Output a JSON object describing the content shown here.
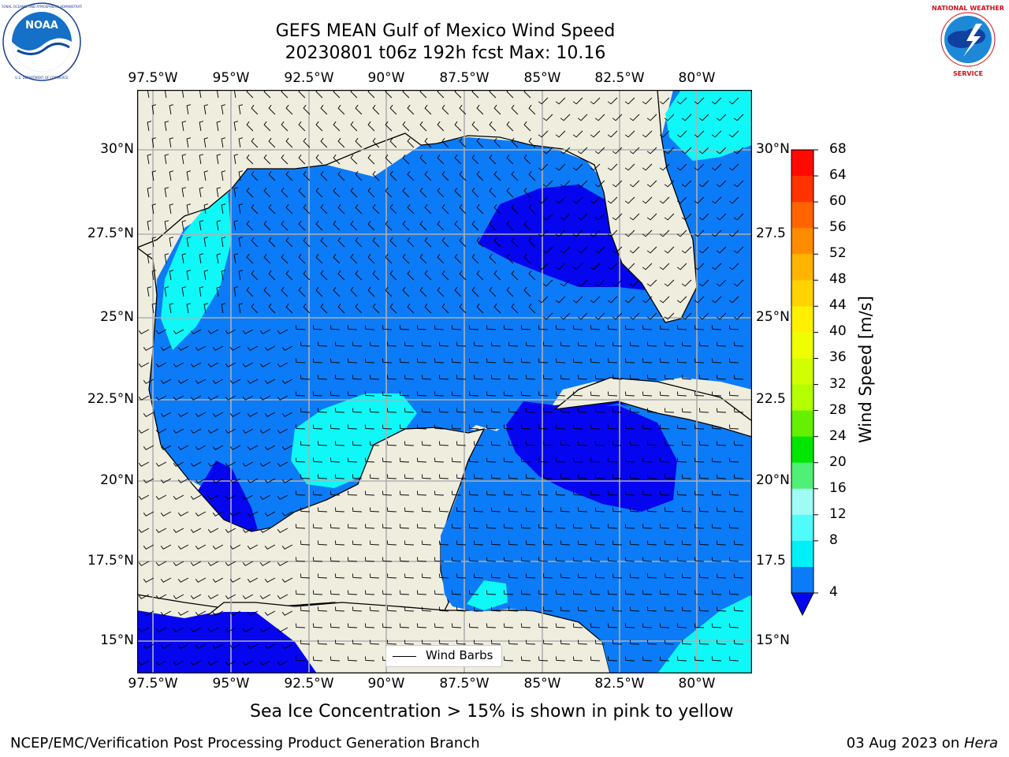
{
  "header": {
    "title_line1": "GEFS MEAN Gulf of Mexico Wind Speed",
    "title_line2": "20230801 t06z 192h fcst   Max: 10.16"
  },
  "logos": {
    "noaa_text": "NOAA",
    "noaa_ring_text": "NATIONAL OCEANIC AND ATMOSPHERIC ADMINISTRATION · U.S. DEPARTMENT OF COMMERCE",
    "nws_ring_text": "NATIONAL WEATHER SERVICE"
  },
  "map": {
    "lon_labels": [
      "97.5°W",
      "95°W",
      "92.5°W",
      "90°W",
      "87.5°W",
      "85°W",
      "82.5°W",
      "80°W"
    ],
    "lat_labels_left": [
      "30°N",
      "27.5°N",
      "25°N",
      "22.5°N",
      "20°N",
      "17.5°N",
      "15°N"
    ],
    "lat_labels_right": [
      "30°N",
      "27.5",
      "25°N",
      "22.5",
      "20°N",
      "17.5",
      "15°N"
    ],
    "legend_label": "Wind Barbs",
    "colors": {
      "land": "#efedde",
      "c4_8": "#0c7bf7",
      "c0_4": "#0505f0",
      "c8_12": "#0ff7f7",
      "c12_16": "#64f7f7"
    }
  },
  "colorbar": {
    "title": "Wind Speed [m/s]",
    "levels": [
      "68",
      "64",
      "60",
      "56",
      "52",
      "48",
      "44",
      "40",
      "36",
      "32",
      "28",
      "24",
      "20",
      "16",
      "12",
      "8",
      "4"
    ],
    "colors": [
      "#ff0a00",
      "#ff3200",
      "#ff6400",
      "#ff8c00",
      "#ffb400",
      "#ffd200",
      "#fff000",
      "#f0ff00",
      "#d2ff00",
      "#b4ff00",
      "#64f000",
      "#00e600",
      "#50f076",
      "#a0fbf5",
      "#50fbfb",
      "#00f0f8",
      "#0c7bf7"
    ],
    "extend_color": "#0505f0"
  },
  "caption": "Sea Ice Concentration > 15% is shown in pink to yellow",
  "footer": {
    "left": "NCEP/EMC/Verification Post Processing Product Generation Branch",
    "date": "03 Aug 2023 on ",
    "machine": "Hera"
  }
}
